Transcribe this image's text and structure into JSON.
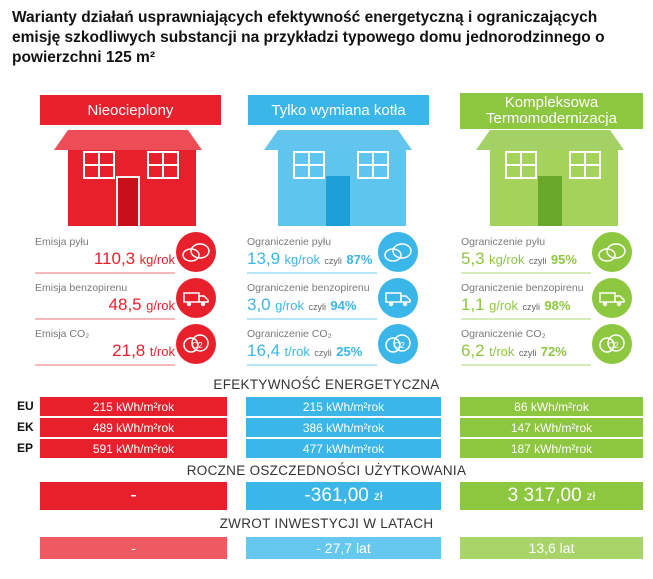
{
  "title": "Warianty działań usprawniających efektywność energetyczną i ograniczających emisję szkodliwych substancji na przykładzi typowego domu jednorodzinnego o powierzchni 125 m²",
  "colors": {
    "red": "#e8202c",
    "blue": "#3ab7e8",
    "green": "#8dc63f"
  },
  "columns": [
    {
      "header": [
        "Nieocieplony"
      ],
      "color": "#e8202c",
      "stats": [
        {
          "label": "Emisja pyłu",
          "value": "110,3",
          "unit": "kg/rok",
          "czyli": "",
          "pct": "",
          "icon": "dust-cloud-icon"
        },
        {
          "label": "Emisja benzopirenu",
          "value": "48,5",
          "unit": "g/rok",
          "czyli": "",
          "pct": "",
          "icon": "truck-icon"
        },
        {
          "label": "Emisja CO₂",
          "value": "21,8",
          "unit": "t/rok",
          "czyli": "",
          "pct": "",
          "icon": "co2-cloud-icon"
        }
      ],
      "eu": "215 kWh/m²rok",
      "ek": "489 kWh/m²rok",
      "ep": "591 kWh/m²rok",
      "savings": "-",
      "savings_unit": "",
      "payback": "-"
    },
    {
      "header": [
        "Tylko wymiana kotła"
      ],
      "color": "#3ab7e8",
      "stats": [
        {
          "label": "Ograniczenie pyłu",
          "value": "13,9",
          "unit": "kg/rok",
          "czyli": "czyli",
          "pct": "87%",
          "icon": "dust-cloud-icon"
        },
        {
          "label": "Ograniczenie benzopirenu",
          "value": "3,0",
          "unit": "g/rok",
          "czyli": "czyli",
          "pct": "94%",
          "icon": "truck-icon"
        },
        {
          "label": "Ograniczenie CO₂",
          "value": "16,4",
          "unit": "t/rok",
          "czyli": "czyli",
          "pct": "25%",
          "icon": "co2-cloud-icon"
        }
      ],
      "eu": "215 kWh/m²rok",
      "ek": "386 kWh/m²rok",
      "ep": "477 kWh/m²rok",
      "savings": "-361,00",
      "savings_unit": "zł",
      "payback": "- 27,7 lat"
    },
    {
      "header": [
        "Kompleksowa",
        "Termomodernizacja"
      ],
      "color": "#8dc63f",
      "stats": [
        {
          "label": "Ograniczenie pyłu",
          "value": "5,3",
          "unit": "kg/rok",
          "czyli": "czyli",
          "pct": "95%",
          "icon": "dust-cloud-icon"
        },
        {
          "label": "Ograniczenie benzopirenu",
          "value": "1,1",
          "unit": "g/rok",
          "czyli": "czyli",
          "pct": "98%",
          "icon": "truck-icon"
        },
        {
          "label": "Ograniczenie CO₂",
          "value": "6,2",
          "unit": "t/rok",
          "czyli": "czyli",
          "pct": "72%",
          "icon": "co2-cloud-icon"
        }
      ],
      "eu": "86 kWh/m²rok",
      "ek": "147 kWh/m²rok",
      "ep": "187 kWh/m²rok",
      "savings": "3 317,00",
      "savings_unit": "zł",
      "payback": "13,6 lat"
    }
  ],
  "sections": {
    "efficiency": "EFEKTYWNOŚĆ ENERGETYCZNA",
    "savings": "ROCZNE OSZCZEDNOŚCI UŻYTKOWANIA",
    "payback": "ZWROT INWESTYCJI W LATACH"
  },
  "row_labels": {
    "eu": "EU",
    "ek": "EK",
    "ep": "EP"
  }
}
